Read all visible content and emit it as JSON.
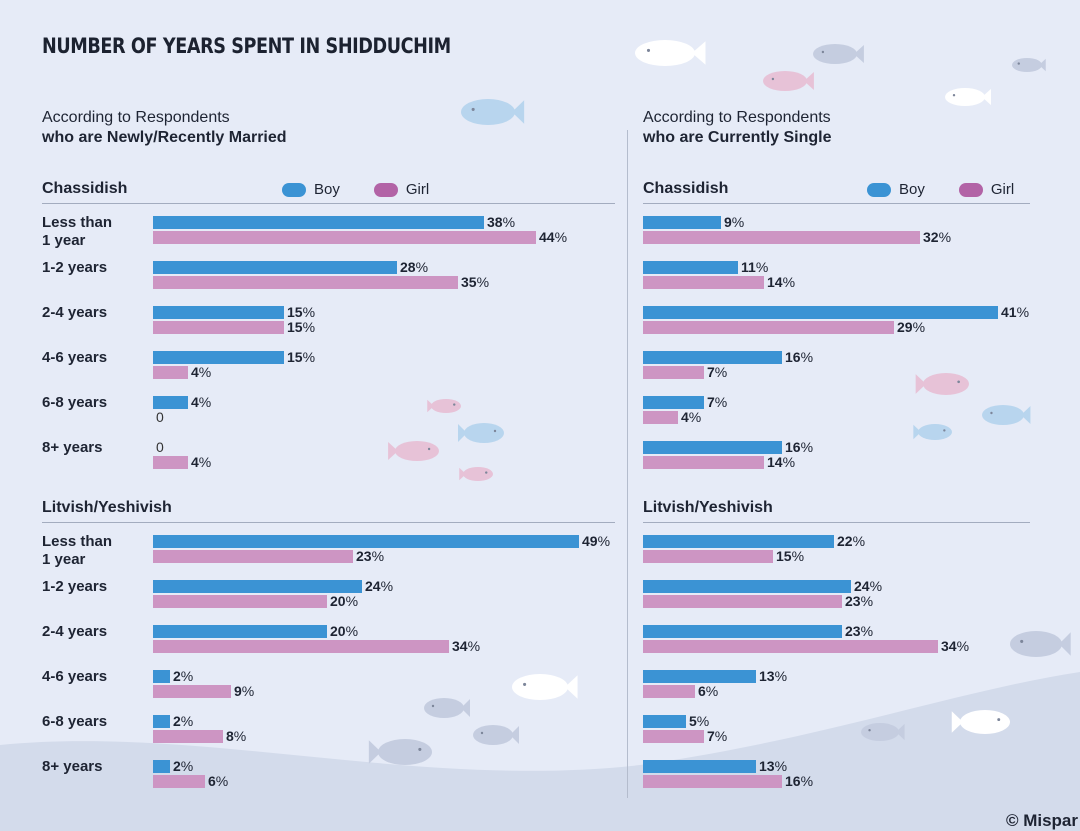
{
  "title": "NUMBER OF YEARS SPENT IN SHIDDUCHIM",
  "footer": "© Mispar",
  "colors": {
    "boy": "#3b93d4",
    "girl": "#cd95c3",
    "boy_legend": "#3b93d4",
    "girl_legend": "#b263a6",
    "background": "#e6ebf7"
  },
  "panels": [
    {
      "subtitle_line1": "According to Respondents",
      "subtitle_line2": "who are Newly/Recently Married"
    },
    {
      "subtitle_line1": "According to Respondents",
      "subtitle_line2": "who are Currently Single"
    }
  ],
  "legend": {
    "boy": "Boy",
    "girl": "Girl"
  },
  "chart_data": [
    {
      "type": "bar",
      "panel": "who are Newly/Recently Married",
      "group": "Chassidish",
      "categories": [
        "Less than 1 year",
        "1-2 years",
        "2-4 years",
        "4-6 years",
        "6-8 years",
        "8+ years"
      ],
      "category_lines": [
        [
          "Less than",
          "1 year"
        ],
        [
          "1-2 years"
        ],
        [
          "2-4 years"
        ],
        [
          "4-6 years"
        ],
        [
          "6-8 years"
        ],
        [
          "8+ years"
        ]
      ],
      "series": [
        {
          "name": "Boy",
          "values": [
            38,
            28,
            15,
            15,
            4,
            0
          ]
        },
        {
          "name": "Girl",
          "values": [
            44,
            35,
            15,
            4,
            0,
            4
          ]
        }
      ],
      "unit": "%"
    },
    {
      "type": "bar",
      "panel": "who are Newly/Recently Married",
      "group": "Litvish/Yeshivish",
      "categories": [
        "Less than 1 year",
        "1-2 years",
        "2-4 years",
        "4-6 years",
        "6-8 years",
        "8+ years"
      ],
      "category_lines": [
        [
          "Less than",
          "1 year"
        ],
        [
          "1-2 years"
        ],
        [
          "2-4 years"
        ],
        [
          "4-6 years"
        ],
        [
          "6-8 years"
        ],
        [
          "8+ years"
        ]
      ],
      "series": [
        {
          "name": "Boy",
          "values": [
            49,
            24,
            20,
            2,
            2,
            2
          ]
        },
        {
          "name": "Girl",
          "values": [
            23,
            20,
            34,
            9,
            8,
            6
          ]
        }
      ],
      "unit": "%"
    },
    {
      "type": "bar",
      "panel": "who are Currently Single",
      "group": "Chassidish",
      "categories": [
        "Less than 1 year",
        "1-2 years",
        "2-4 years",
        "4-6 years",
        "6-8 years",
        "8+ years"
      ],
      "series": [
        {
          "name": "Boy",
          "values": [
            9,
            11,
            41,
            16,
            7,
            16
          ]
        },
        {
          "name": "Girl",
          "values": [
            32,
            14,
            29,
            7,
            4,
            14
          ]
        }
      ],
      "unit": "%"
    },
    {
      "type": "bar",
      "panel": "who are Currently Single",
      "group": "Litvish/Yeshivish",
      "categories": [
        "Less than 1 year",
        "1-2 years",
        "2-4 years",
        "4-6 years",
        "6-8 years",
        "8+ years"
      ],
      "series": [
        {
          "name": "Boy",
          "values": [
            22,
            24,
            23,
            13,
            5,
            13
          ]
        },
        {
          "name": "Girl",
          "values": [
            15,
            23,
            34,
            6,
            7,
            16
          ]
        }
      ],
      "unit": "%"
    }
  ]
}
